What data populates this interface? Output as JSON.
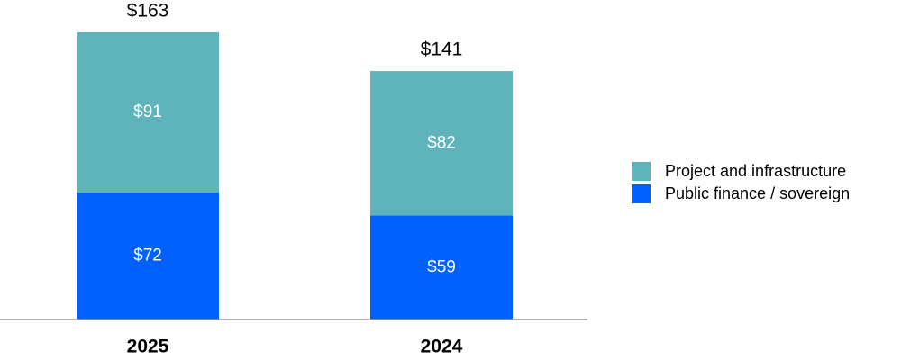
{
  "chart_data": {
    "type": "stacked-bar",
    "categories": [
      "2025",
      "2024"
    ],
    "series": [
      {
        "name": "Public finance / sovereign",
        "color": "#0061fe",
        "values": [
          72,
          59
        ],
        "value_labels": [
          "$72",
          "$59"
        ]
      },
      {
        "name": "Project and infrastructure",
        "color": "#5fb4bb",
        "values": [
          91,
          82
        ],
        "value_labels": [
          "$91",
          "$82"
        ]
      }
    ],
    "totals": [
      163,
      141
    ],
    "total_labels": [
      "$163",
      "$141"
    ]
  }
}
